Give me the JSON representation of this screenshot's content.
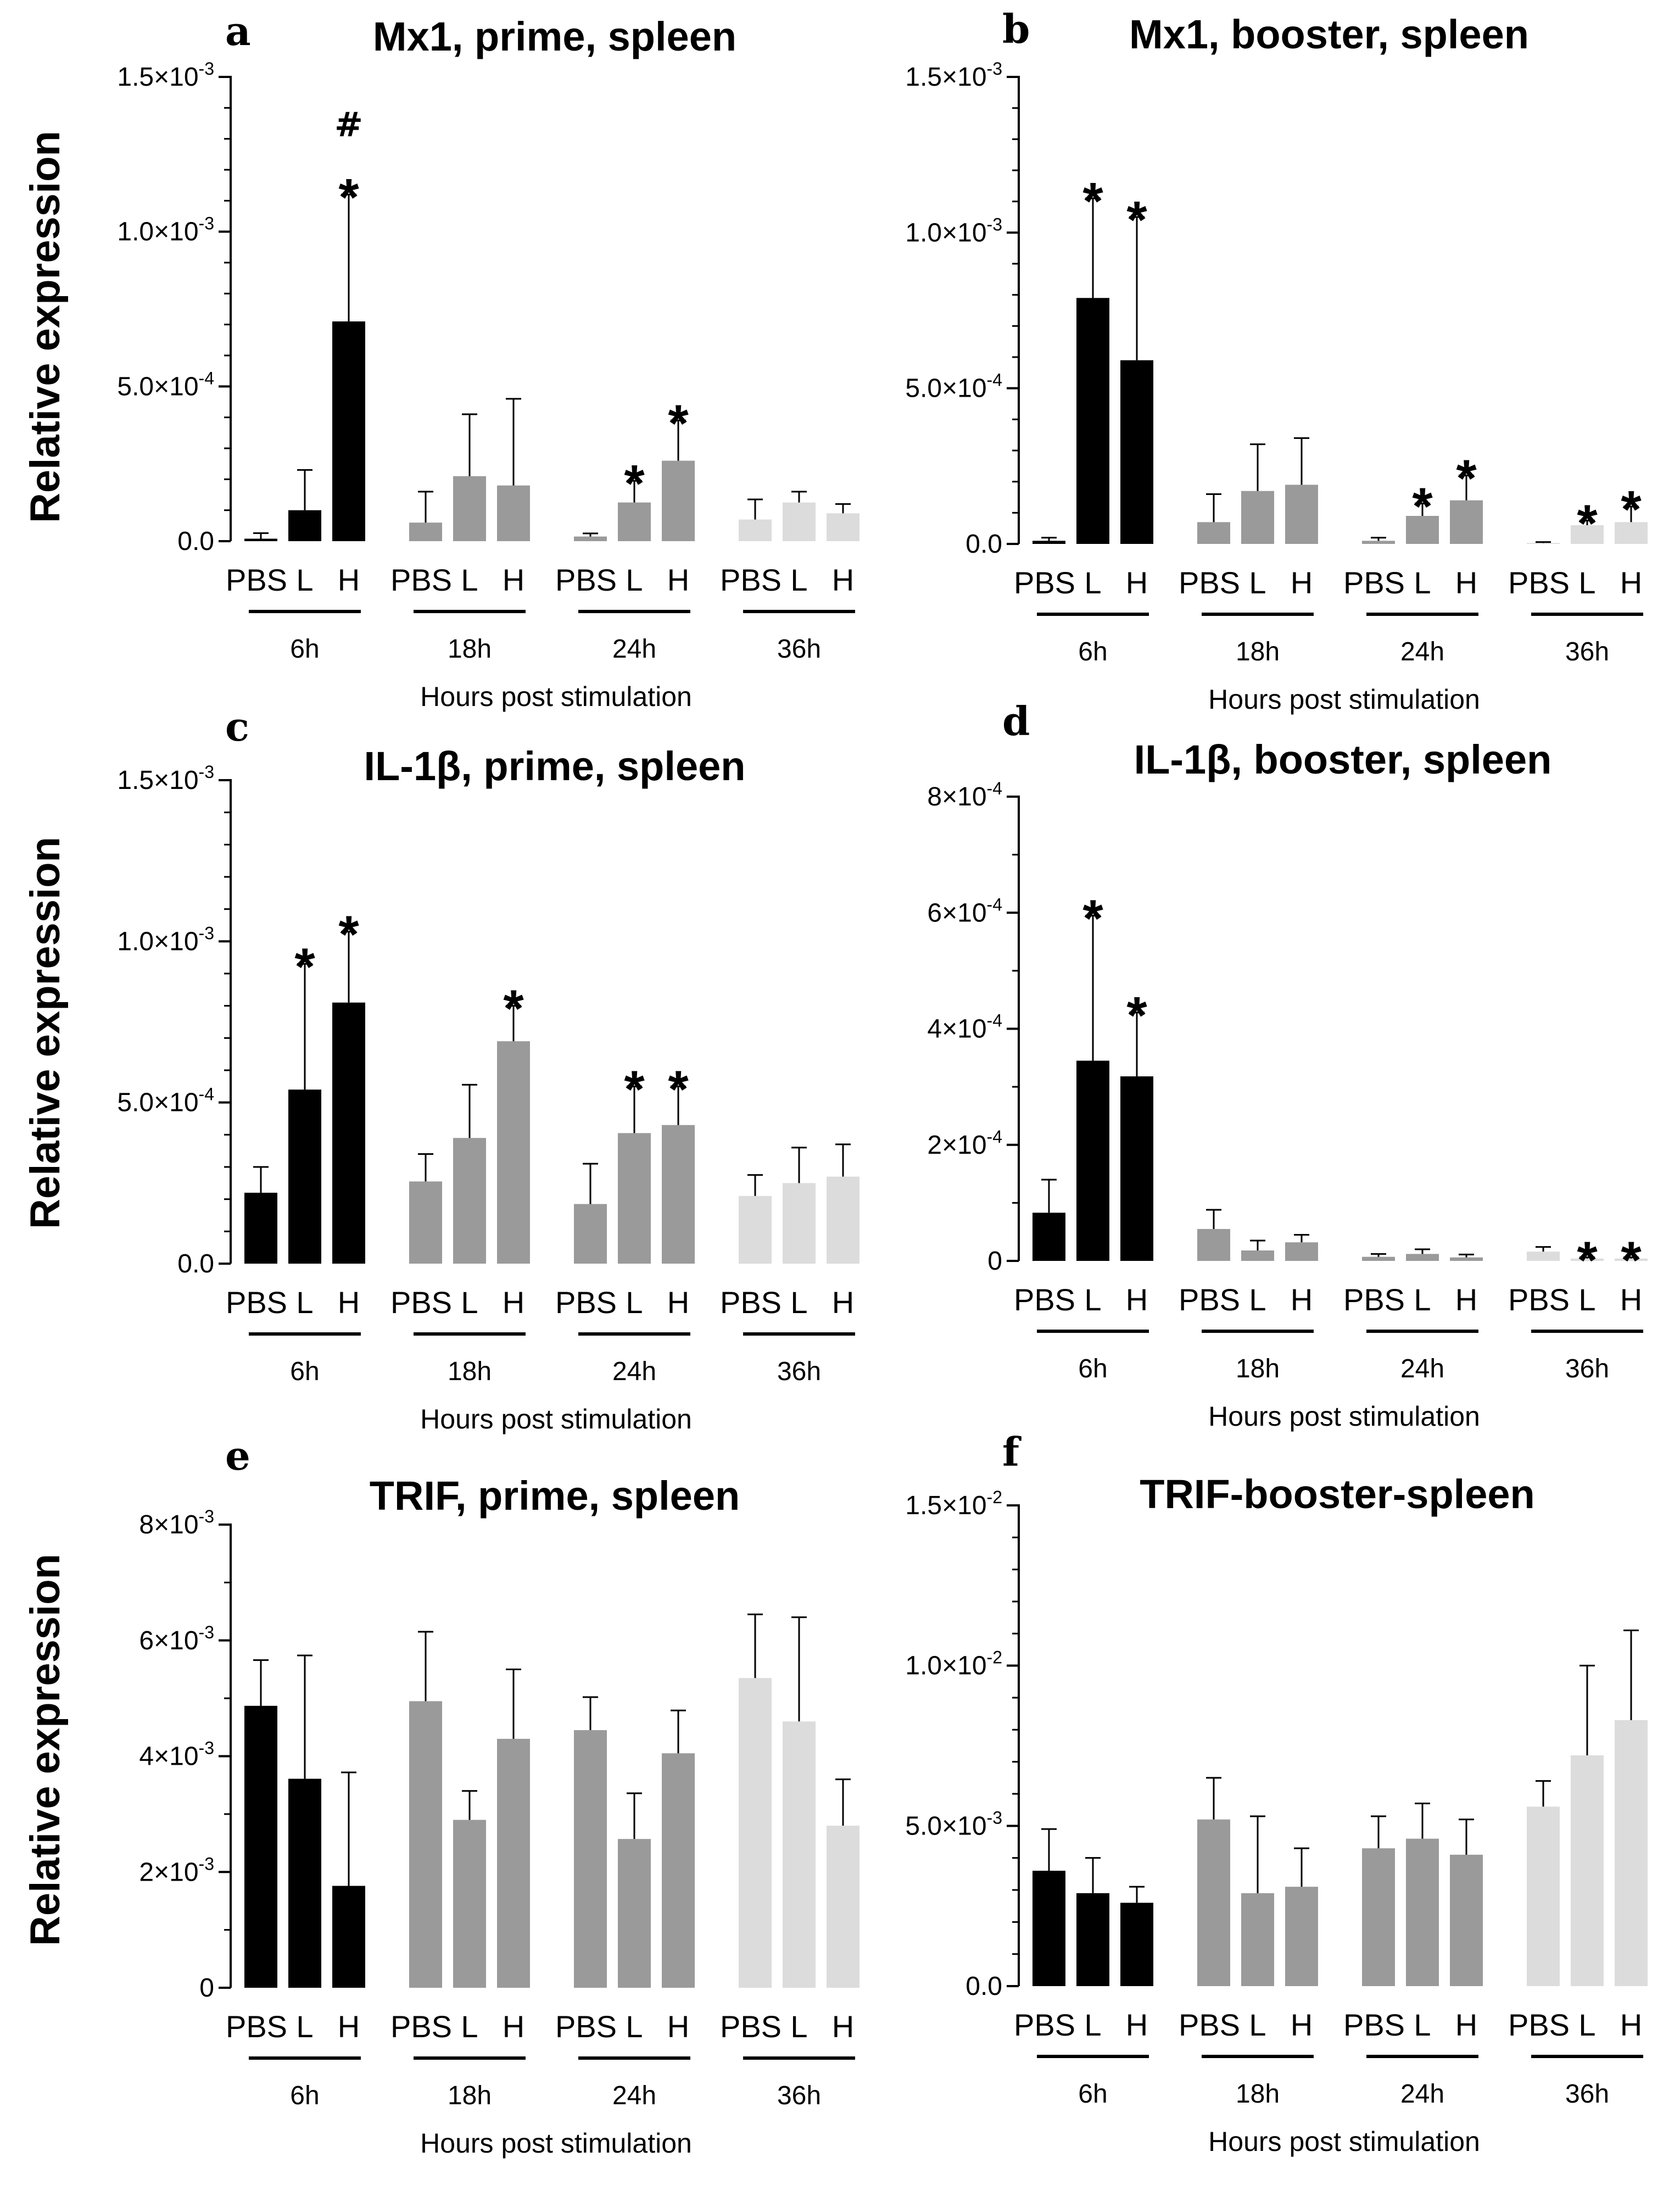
{
  "figure": {
    "ylabel": "Relative expression"
  },
  "chart_data": [
    {
      "panel": "a",
      "type": "bar",
      "title": "Mx1, prime, spleen",
      "xlabel": "Hours post stimulation",
      "ylabel": "Relative expression",
      "ylim": [
        0,
        0.0015
      ],
      "yticks": [
        {
          "value": 0,
          "label": "0.0"
        },
        {
          "value": 0.0005,
          "mant": "5.0×10",
          "exp": "-4"
        },
        {
          "value": 0.001,
          "mant": "1.0×10",
          "exp": "-3"
        },
        {
          "value": 0.0015,
          "mant": "1.5×10",
          "exp": "-3"
        }
      ],
      "categories": [
        "PBS",
        "L",
        "H"
      ],
      "groups": [
        {
          "label": "6h",
          "color": "#000000",
          "values": [
            8e-06,
            0.0001,
            0.00071
          ],
          "errors": [
            1.8e-05,
            0.00013,
            0.00041
          ],
          "annotations": [
            [],
            [],
            [
              "*",
              "#"
            ]
          ]
        },
        {
          "label": "18h",
          "color": "#9a9a9a",
          "values": [
            6e-05,
            0.00021,
            0.00018
          ],
          "errors": [
            0.0001,
            0.0002,
            0.00028
          ],
          "annotations": [
            [],
            [],
            []
          ]
        },
        {
          "label": "24h",
          "color": "#9a9a9a",
          "values": [
            1.5e-05,
            0.000125,
            0.00026
          ],
          "errors": [
            1e-05,
            7e-05,
            0.00013
          ],
          "annotations": [
            [],
            [
              "*"
            ],
            [
              "*"
            ]
          ]
        },
        {
          "label": "36h",
          "color": "#dcdcdc",
          "values": [
            7e-05,
            0.000125,
            9e-05
          ],
          "errors": [
            6.5e-05,
            3.5e-05,
            3e-05
          ],
          "annotations": [
            [],
            [],
            []
          ]
        }
      ]
    },
    {
      "panel": "b",
      "type": "bar",
      "title": "Mx1, booster, spleen",
      "xlabel": "Hours post stimulation",
      "ylabel": "",
      "ylim": [
        0,
        0.0015
      ],
      "yticks": [
        {
          "value": 0,
          "label": "0.0"
        },
        {
          "value": 0.0005,
          "mant": "5.0×10",
          "exp": "-4"
        },
        {
          "value": 0.001,
          "mant": "1.0×10",
          "exp": "-3"
        },
        {
          "value": 0.0015,
          "mant": "1.5×10",
          "exp": "-3"
        }
      ],
      "categories": [
        "PBS",
        "L",
        "H"
      ],
      "groups": [
        {
          "label": "6h",
          "color": "#000000",
          "values": [
            1e-05,
            0.00079,
            0.00059
          ],
          "errors": [
            1e-05,
            0.00032,
            0.00046
          ],
          "annotations": [
            [],
            [
              "*"
            ],
            [
              "*"
            ]
          ]
        },
        {
          "label": "18h",
          "color": "#9a9a9a",
          "values": [
            7e-05,
            0.00017,
            0.00019
          ],
          "errors": [
            9e-05,
            0.00015,
            0.00015
          ],
          "annotations": [
            [],
            [],
            []
          ]
        },
        {
          "label": "24h",
          "color": "#9a9a9a",
          "values": [
            1e-05,
            9e-05,
            0.00014
          ],
          "errors": [
            1e-05,
            4e-05,
            8e-05
          ],
          "annotations": [
            [],
            [
              "*"
            ],
            [
              "*"
            ]
          ]
        },
        {
          "label": "36h",
          "color": "#dcdcdc",
          "values": [
            3e-06,
            6e-05,
            7e-05
          ],
          "errors": [
            3e-06,
            1.5e-05,
            5e-05
          ],
          "annotations": [
            [],
            [
              "*"
            ],
            [
              "*"
            ]
          ]
        }
      ]
    },
    {
      "panel": "c",
      "type": "bar",
      "title": "IL-1β, prime, spleen",
      "xlabel": "Hours post stimulation",
      "ylabel": "Relative expression",
      "ylim": [
        0,
        0.0015
      ],
      "yticks": [
        {
          "value": 0,
          "label": "0.0"
        },
        {
          "value": 0.0005,
          "mant": "5.0×10",
          "exp": "-4"
        },
        {
          "value": 0.001,
          "mant": "1.0×10",
          "exp": "-3"
        },
        {
          "value": 0.0015,
          "mant": "1.5×10",
          "exp": "-3"
        }
      ],
      "categories": [
        "PBS",
        "L",
        "H"
      ],
      "groups": [
        {
          "label": "6h",
          "color": "#000000",
          "values": [
            0.00022,
            0.00054,
            0.00081
          ],
          "errors": [
            8e-05,
            0.00039,
            0.00022
          ],
          "annotations": [
            [],
            [
              "*"
            ],
            [
              "*"
            ]
          ]
        },
        {
          "label": "18h",
          "color": "#9a9a9a",
          "values": [
            0.000255,
            0.00039,
            0.00069
          ],
          "errors": [
            8.5e-05,
            0.000165,
            0.00011
          ],
          "annotations": [
            [],
            [],
            [
              "*"
            ]
          ]
        },
        {
          "label": "24h",
          "color": "#9a9a9a",
          "values": [
            0.000185,
            0.000405,
            0.00043
          ],
          "errors": [
            0.000125,
            0.000145,
            0.00012
          ],
          "annotations": [
            [],
            [
              "*"
            ],
            [
              "*"
            ]
          ]
        },
        {
          "label": "36h",
          "color": "#dcdcdc",
          "values": [
            0.00021,
            0.00025,
            0.00027
          ],
          "errors": [
            6.5e-05,
            0.00011,
            0.0001
          ],
          "annotations": [
            [],
            [],
            []
          ]
        }
      ]
    },
    {
      "panel": "d",
      "type": "bar",
      "title": "IL-1β, booster, spleen",
      "xlabel": "Hours post stimulation",
      "ylabel": "",
      "ylim": [
        0,
        0.0008
      ],
      "yticks": [
        {
          "value": 0,
          "label": "0"
        },
        {
          "value": 0.0002,
          "mant": "2×10",
          "exp": "-4"
        },
        {
          "value": 0.0004,
          "mant": "4×10",
          "exp": "-4"
        },
        {
          "value": 0.0006,
          "mant": "6×10",
          "exp": "-4"
        },
        {
          "value": 0.0008,
          "mant": "8×10",
          "exp": "-4"
        }
      ],
      "categories": [
        "PBS",
        "L",
        "H"
      ],
      "groups": [
        {
          "label": "6h",
          "color": "#000000",
          "values": [
            8.3e-05,
            0.000345,
            0.000318
          ],
          "errors": [
            5.7e-05,
            0.00025,
            0.00011
          ],
          "annotations": [
            [],
            [
              "*"
            ],
            [
              "*"
            ]
          ]
        },
        {
          "label": "18h",
          "color": "#9a9a9a",
          "values": [
            5.5e-05,
            1.8e-05,
            3.2e-05
          ],
          "errors": [
            3.3e-05,
            1.7e-05,
            1.3e-05
          ],
          "annotations": [
            [],
            [],
            []
          ]
        },
        {
          "label": "24h",
          "color": "#9a9a9a",
          "values": [
            7e-06,
            1.2e-05,
            6e-06
          ],
          "errors": [
            5e-06,
            8e-06,
            5e-06
          ],
          "annotations": [
            [],
            [],
            []
          ]
        },
        {
          "label": "36h",
          "color": "#dcdcdc",
          "values": [
            1.6e-05,
            4e-06,
            4e-06
          ],
          "errors": [
            8e-06,
            2e-06,
            2e-06
          ],
          "annotations": [
            [],
            [
              "*"
            ],
            [
              "*"
            ]
          ]
        }
      ]
    },
    {
      "panel": "e",
      "type": "bar",
      "title": "TRIF, prime, spleen",
      "xlabel": "Hours post stimulation",
      "ylabel": "Relative expression",
      "ylim": [
        0,
        0.008
      ],
      "yticks": [
        {
          "value": 0,
          "label": "0"
        },
        {
          "value": 0.002,
          "mant": "2×10",
          "exp": "-3"
        },
        {
          "value": 0.004,
          "mant": "4×10",
          "exp": "-3"
        },
        {
          "value": 0.006,
          "mant": "6×10",
          "exp": "-3"
        },
        {
          "value": 0.008,
          "mant": "8×10",
          "exp": "-3"
        }
      ],
      "categories": [
        "PBS",
        "L",
        "H"
      ],
      "groups": [
        {
          "label": "6h",
          "color": "#000000",
          "values": [
            0.00487,
            0.00361,
            0.00176
          ],
          "errors": [
            0.00079,
            0.00213,
            0.00196
          ],
          "annotations": [
            [],
            [],
            []
          ]
        },
        {
          "label": "18h",
          "color": "#9a9a9a",
          "values": [
            0.00495,
            0.0029,
            0.0043
          ],
          "errors": [
            0.0012,
            0.0005,
            0.0012
          ],
          "annotations": [
            [],
            [],
            []
          ]
        },
        {
          "label": "24h",
          "color": "#9a9a9a",
          "values": [
            0.00445,
            0.00257,
            0.00405
          ],
          "errors": [
            0.00057,
            0.00079,
            0.00074
          ],
          "annotations": [
            [],
            [],
            []
          ]
        },
        {
          "label": "36h",
          "color": "#dcdcdc",
          "values": [
            0.00535,
            0.0046,
            0.0028
          ],
          "errors": [
            0.0011,
            0.0018,
            0.0008
          ],
          "annotations": [
            [],
            [],
            []
          ]
        }
      ]
    },
    {
      "panel": "f",
      "type": "bar",
      "title": "TRIF-booster-spleen",
      "xlabel": "Hours post stimulation",
      "ylabel": "",
      "ylim": [
        0,
        0.015
      ],
      "yticks": [
        {
          "value": 0,
          "label": "0.0"
        },
        {
          "value": 0.005,
          "mant": "5.0×10",
          "exp": "-3"
        },
        {
          "value": 0.01,
          "mant": "1.0×10",
          "exp": "-2"
        },
        {
          "value": 0.015,
          "mant": "1.5×10",
          "exp": "-2"
        }
      ],
      "categories": [
        "PBS",
        "L",
        "H"
      ],
      "groups": [
        {
          "label": "6h",
          "color": "#000000",
          "values": [
            0.0036,
            0.0029,
            0.0026
          ],
          "errors": [
            0.0013,
            0.0011,
            0.0005
          ],
          "annotations": [
            [],
            [],
            []
          ]
        },
        {
          "label": "18h",
          "color": "#9a9a9a",
          "values": [
            0.0052,
            0.0029,
            0.0031
          ],
          "errors": [
            0.0013,
            0.0024,
            0.0012
          ],
          "annotations": [
            [],
            [],
            []
          ]
        },
        {
          "label": "24h",
          "color": "#9a9a9a",
          "values": [
            0.0043,
            0.0046,
            0.0041
          ],
          "errors": [
            0.001,
            0.0011,
            0.0011
          ],
          "annotations": [
            [],
            [],
            []
          ]
        },
        {
          "label": "36h",
          "color": "#dcdcdc",
          "values": [
            0.0056,
            0.0072,
            0.0083
          ],
          "errors": [
            0.0008,
            0.0028,
            0.0028
          ],
          "annotations": [
            [],
            [],
            []
          ]
        }
      ]
    }
  ]
}
